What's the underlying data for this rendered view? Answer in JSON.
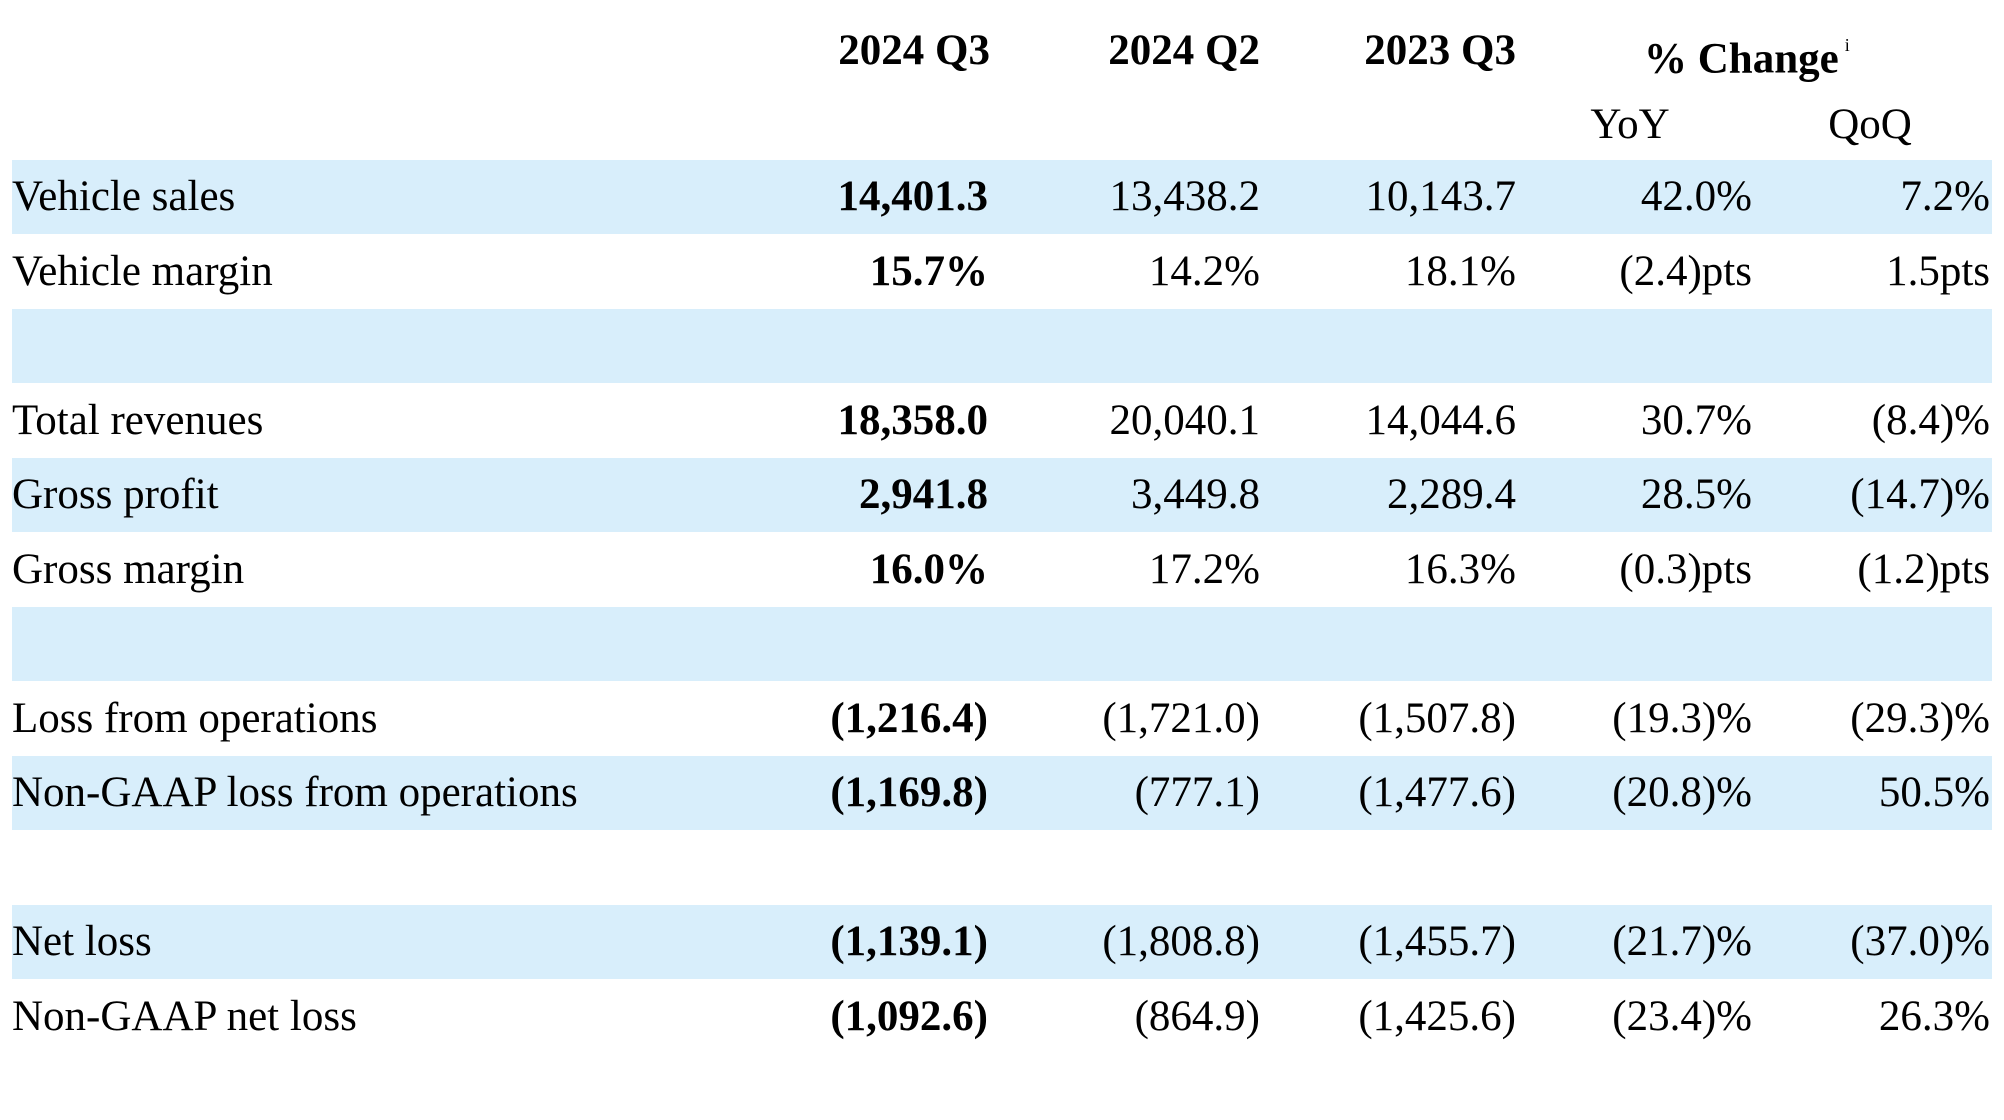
{
  "header": {
    "columns": [
      "2024 Q3",
      "2024 Q2",
      "2023 Q3"
    ],
    "change_title": "% Change",
    "change_footnote": "i",
    "sub_columns": [
      "YoY",
      "QoQ"
    ]
  },
  "rows": [
    {
      "label": "Vehicle sales",
      "q3_2024": "14,401.3",
      "q2_2024": "13,438.2",
      "q3_2023": "10,143.7",
      "yoy": "42.0%",
      "qoq": "7.2%",
      "shaded": true
    },
    {
      "label": "Vehicle margin",
      "q3_2024": "15.7%",
      "q2_2024": "14.2%",
      "q3_2023": "18.1%",
      "yoy": "(2.4)pts",
      "qoq": "1.5pts",
      "shaded": false
    },
    {
      "label": "",
      "q3_2024": "",
      "q2_2024": "",
      "q3_2023": "",
      "yoy": "",
      "qoq": "",
      "shaded": true
    },
    {
      "label": "Total revenues",
      "q3_2024": "18,358.0",
      "q2_2024": "20,040.1",
      "q3_2023": "14,044.6",
      "yoy": "30.7%",
      "qoq": "(8.4)%",
      "shaded": false
    },
    {
      "label": "Gross profit",
      "q3_2024": "2,941.8",
      "q2_2024": "3,449.8",
      "q3_2023": "2,289.4",
      "yoy": "28.5%",
      "qoq": "(14.7)%",
      "shaded": true
    },
    {
      "label": "Gross margin",
      "q3_2024": "16.0%",
      "q2_2024": "17.2%",
      "q3_2023": "16.3%",
      "yoy": "(0.3)pts",
      "qoq": "(1.2)pts",
      "shaded": false
    },
    {
      "label": "",
      "q3_2024": "",
      "q2_2024": "",
      "q3_2023": "",
      "yoy": "",
      "qoq": "",
      "shaded": true
    },
    {
      "label": "Loss from operations",
      "q3_2024": "(1,216.4)",
      "q2_2024": "(1,721.0)",
      "q3_2023": "(1,507.8)",
      "yoy": "(19.3)%",
      "qoq": "(29.3)%",
      "shaded": false
    },
    {
      "label": "Non-GAAP loss from operations",
      "q3_2024": "(1,169.8)",
      "q2_2024": "(777.1)",
      "q3_2023": "(1,477.6)",
      "yoy": "(20.8)%",
      "qoq": "50.5%",
      "shaded": true
    },
    {
      "label": "",
      "q3_2024": "",
      "q2_2024": "",
      "q3_2023": "",
      "yoy": "",
      "qoq": "",
      "shaded": false
    },
    {
      "label": "Net loss",
      "q3_2024": "(1,139.1)",
      "q2_2024": "(1,808.8)",
      "q3_2023": "(1,455.7)",
      "yoy": "(21.7)%",
      "qoq": "(37.0)%",
      "shaded": true
    },
    {
      "label": "Non-GAAP net loss",
      "q3_2024": "(1,092.6)",
      "q2_2024": "(864.9)",
      "q3_2023": "(1,425.6)",
      "yoy": "(23.4)%",
      "qoq": "26.3%",
      "shaded": false
    }
  ]
}
